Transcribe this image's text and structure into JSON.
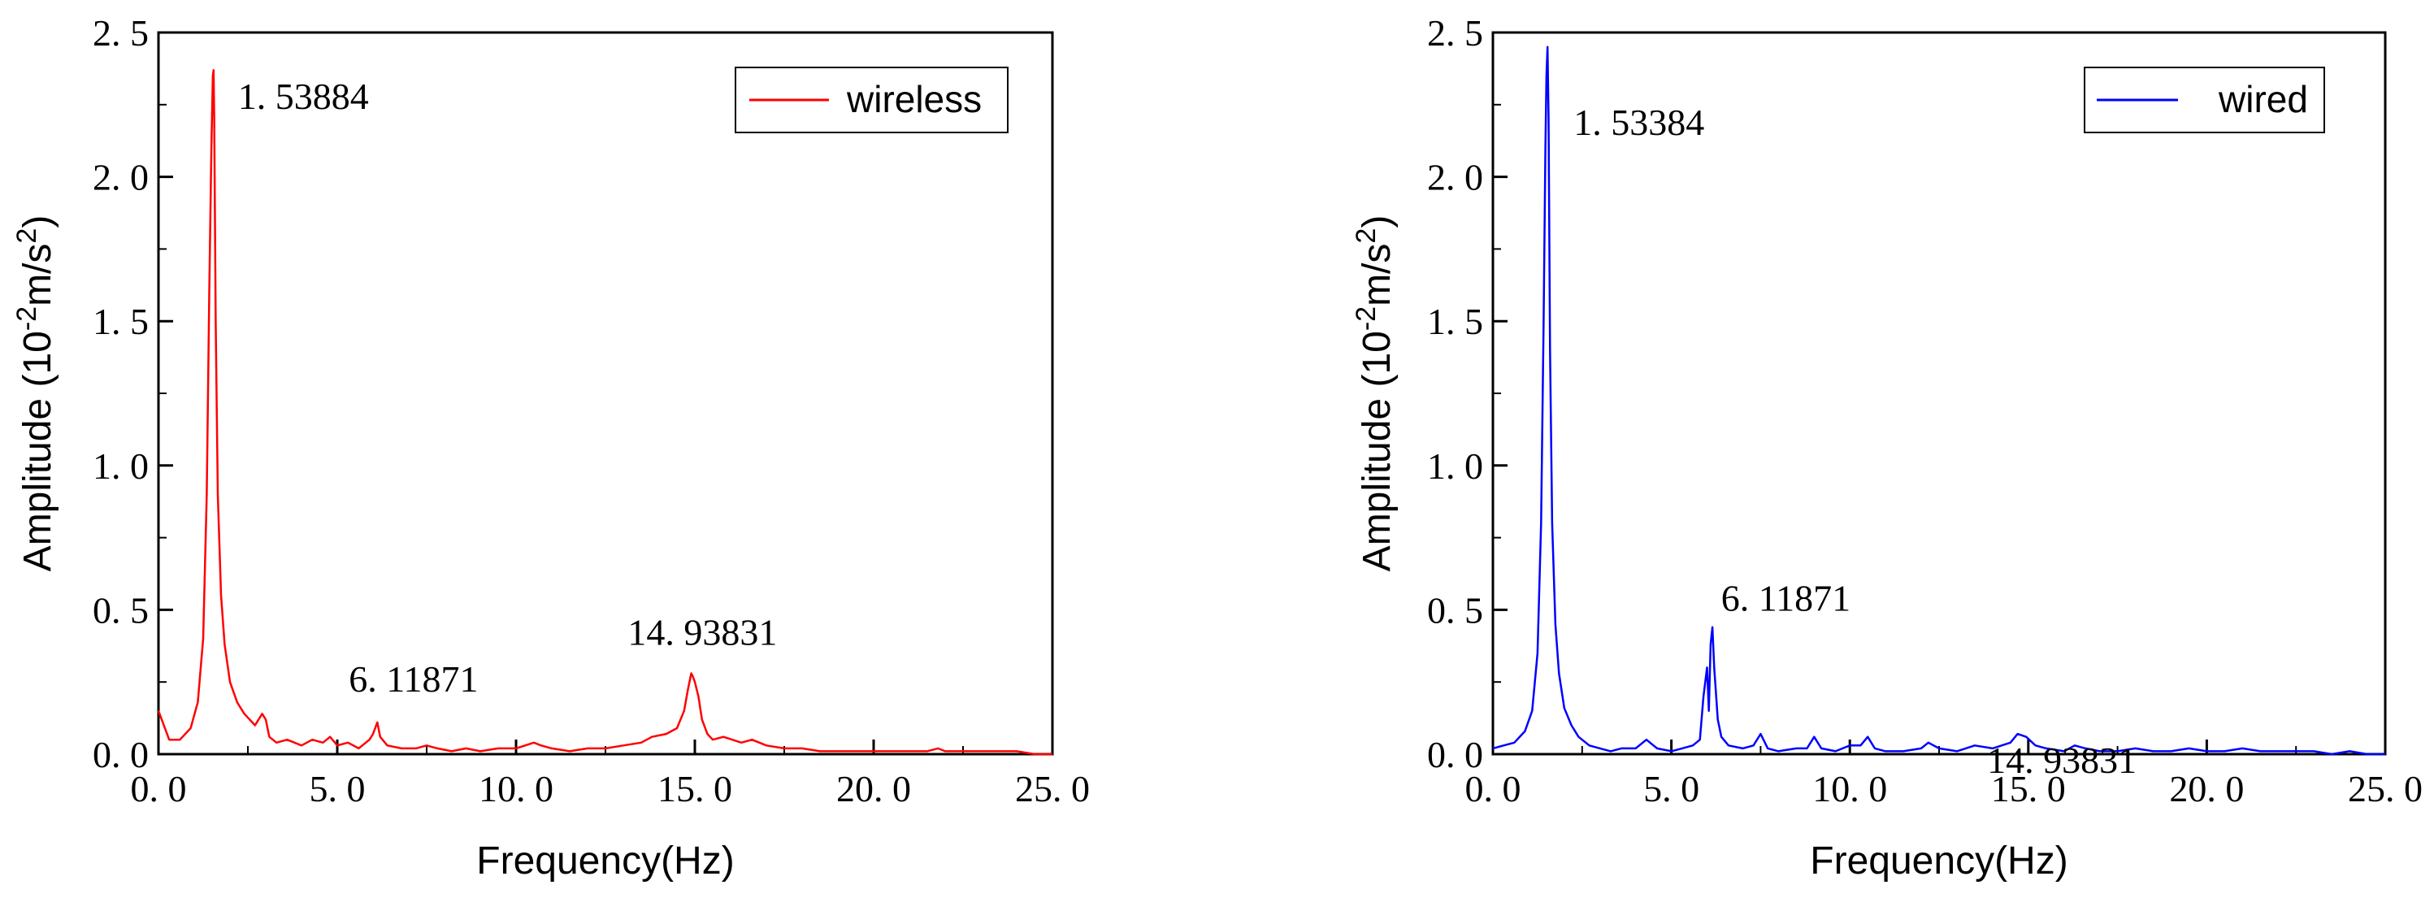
{
  "chart_data": [
    {
      "type": "line",
      "xlabel": "Frequency(Hz)",
      "ylabel_main": "Amplitude (10",
      "ylabel_sup1": "-2",
      "ylabel_mid": "m/s",
      "ylabel_sup2": "2",
      "ylabel_end": ")",
      "xlim": [
        0,
        25
      ],
      "ylim": [
        0,
        2.5
      ],
      "xticks": [
        0,
        5,
        10,
        15,
        20,
        25
      ],
      "xtick_labels": [
        "0. 0",
        "5. 0",
        "10. 0",
        "15. 0",
        "20. 0",
        "25. 0"
      ],
      "yticks": [
        0,
        0.5,
        1.0,
        1.5,
        2.0,
        2.5
      ],
      "ytick_labels": [
        "0. 0",
        "0. 5",
        "1. 0",
        "1. 5",
        "2. 0",
        "2. 5"
      ],
      "legend": "wireless",
      "legend_position": "top-right",
      "color": "#ff0000",
      "annotations": [
        {
          "text": "1. 53884",
          "x": 1.54,
          "y": 2.37
        },
        {
          "text": "6. 11871",
          "x": 6.12,
          "y": 0.11
        },
        {
          "text": "14. 93831",
          "x": 14.94,
          "y": 0.28
        }
      ],
      "series": [
        {
          "name": "wireless",
          "x": [
            0,
            0.3,
            0.6,
            0.9,
            1.1,
            1.25,
            1.35,
            1.42,
            1.48,
            1.52,
            1.54,
            1.56,
            1.6,
            1.66,
            1.75,
            1.85,
            2.0,
            2.2,
            2.4,
            2.7,
            2.9,
            3.0,
            3.1,
            3.3,
            3.6,
            4.0,
            4.3,
            4.6,
            4.8,
            5.0,
            5.3,
            5.6,
            5.9,
            6.0,
            6.12,
            6.2,
            6.4,
            6.8,
            7.2,
            7.5,
            7.8,
            8.2,
            8.6,
            9.0,
            9.5,
            10.0,
            10.5,
            10.7,
            11.0,
            11.5,
            12.0,
            12.5,
            13.0,
            13.5,
            13.8,
            14.2,
            14.5,
            14.7,
            14.8,
            14.9,
            14.94,
            15.0,
            15.1,
            15.2,
            15.35,
            15.5,
            15.8,
            16.3,
            16.6,
            17.0,
            17.5,
            18.0,
            18.5,
            19.0,
            19.5,
            20.0,
            20.5,
            21.0,
            21.5,
            21.8,
            22.0,
            22.5,
            23.0,
            23.5,
            24.0,
            24.5,
            25.0
          ],
          "y": [
            0.15,
            0.05,
            0.05,
            0.09,
            0.18,
            0.4,
            0.9,
            1.6,
            2.1,
            2.35,
            2.37,
            2.2,
            1.5,
            0.9,
            0.55,
            0.38,
            0.25,
            0.18,
            0.14,
            0.1,
            0.14,
            0.12,
            0.06,
            0.04,
            0.05,
            0.03,
            0.05,
            0.04,
            0.06,
            0.03,
            0.04,
            0.02,
            0.05,
            0.07,
            0.11,
            0.06,
            0.03,
            0.02,
            0.02,
            0.03,
            0.02,
            0.01,
            0.02,
            0.01,
            0.02,
            0.02,
            0.04,
            0.03,
            0.02,
            0.01,
            0.02,
            0.02,
            0.03,
            0.04,
            0.06,
            0.07,
            0.09,
            0.15,
            0.22,
            0.28,
            0.27,
            0.25,
            0.2,
            0.12,
            0.07,
            0.05,
            0.06,
            0.04,
            0.05,
            0.03,
            0.02,
            0.02,
            0.01,
            0.01,
            0.01,
            0.01,
            0.01,
            0.01,
            0.01,
            0.02,
            0.01,
            0.01,
            0.01,
            0.01,
            0.01,
            0.0,
            0.0
          ]
        }
      ]
    },
    {
      "type": "line",
      "xlabel": "Frequency(Hz)",
      "ylabel_main": "Amplitude (10",
      "ylabel_sup1": "-2",
      "ylabel_mid": "m/s",
      "ylabel_sup2": "2",
      "ylabel_end": ")",
      "xlim": [
        0,
        25
      ],
      "ylim": [
        0,
        2.5
      ],
      "xticks": [
        0,
        5,
        10,
        15,
        20,
        25
      ],
      "xtick_labels": [
        "0. 0",
        "5. 0",
        "10. 0",
        "15. 0",
        "20. 0",
        "25. 0"
      ],
      "yticks": [
        0,
        0.5,
        1.0,
        1.5,
        2.0,
        2.5
      ],
      "ytick_labels": [
        "0. 0",
        "0. 5",
        "1. 0",
        "1. 5",
        "2. 0",
        "2. 5"
      ],
      "legend": "wired",
      "legend_position": "top-right",
      "color": "#0000ff",
      "annotations": [
        {
          "text": "1. 53384",
          "x": 1.53,
          "y": 2.45
        },
        {
          "text": "6. 11871",
          "x": 6.12,
          "y": 0.44
        },
        {
          "text": "14. 93831",
          "x": 14.94,
          "y": 0.07
        }
      ],
      "series": [
        {
          "name": "wired",
          "x": [
            0,
            0.3,
            0.6,
            0.9,
            1.1,
            1.25,
            1.35,
            1.42,
            1.47,
            1.5,
            1.53,
            1.56,
            1.6,
            1.66,
            1.75,
            1.85,
            2.0,
            2.2,
            2.4,
            2.7,
            3.0,
            3.3,
            3.6,
            4.0,
            4.3,
            4.6,
            5.0,
            5.3,
            5.6,
            5.8,
            5.9,
            6.0,
            6.05,
            6.1,
            6.15,
            6.2,
            6.3,
            6.4,
            6.6,
            7.0,
            7.3,
            7.5,
            7.7,
            8.0,
            8.5,
            8.8,
            9.0,
            9.2,
            9.6,
            10.0,
            10.3,
            10.5,
            10.7,
            11.0,
            11.5,
            12.0,
            12.2,
            12.5,
            13.0,
            13.5,
            14.0,
            14.5,
            14.7,
            14.94,
            15.2,
            15.5,
            16.0,
            16.3,
            16.6,
            17.0,
            17.5,
            18.0,
            18.5,
            19.0,
            19.5,
            20.0,
            20.5,
            21.0,
            21.5,
            22.0,
            22.5,
            23.0,
            23.5,
            24.0,
            24.5,
            25.0
          ],
          "y": [
            0.02,
            0.03,
            0.04,
            0.08,
            0.15,
            0.35,
            0.8,
            1.5,
            2.1,
            2.35,
            2.45,
            2.2,
            1.4,
            0.8,
            0.45,
            0.28,
            0.16,
            0.1,
            0.06,
            0.03,
            0.02,
            0.01,
            0.02,
            0.02,
            0.05,
            0.02,
            0.01,
            0.02,
            0.03,
            0.05,
            0.2,
            0.3,
            0.15,
            0.38,
            0.44,
            0.3,
            0.12,
            0.06,
            0.03,
            0.02,
            0.03,
            0.07,
            0.02,
            0.01,
            0.02,
            0.02,
            0.06,
            0.02,
            0.01,
            0.03,
            0.03,
            0.06,
            0.02,
            0.01,
            0.01,
            0.02,
            0.04,
            0.02,
            0.01,
            0.03,
            0.02,
            0.04,
            0.07,
            0.06,
            0.03,
            0.02,
            0.01,
            0.03,
            0.02,
            0.01,
            0.01,
            0.02,
            0.01,
            0.01,
            0.02,
            0.01,
            0.01,
            0.02,
            0.01,
            0.01,
            0.01,
            0.01,
            0.0,
            0.01,
            0.0,
            0.0
          ]
        }
      ]
    }
  ]
}
